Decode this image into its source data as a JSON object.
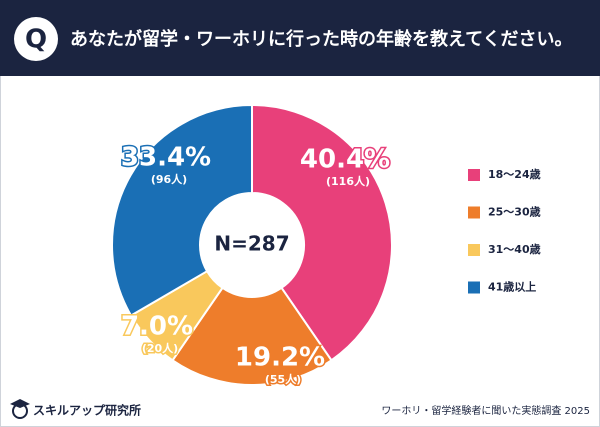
{
  "header": {
    "icon": "Q",
    "question": "あなたが留学・ワーホリに行った時の年齢を教えてください。"
  },
  "chart_data": {
    "type": "donut",
    "center_label": "N=287",
    "categories": [
      "18〜24歳",
      "25〜30歳",
      "31〜40歳",
      "41歳以上"
    ],
    "values": [
      40.4,
      19.2,
      7.0,
      33.4
    ],
    "value_labels": [
      "40.4%",
      "19.2%",
      "7.0%",
      "33.4%"
    ],
    "counts": [
      116,
      55,
      20,
      96
    ],
    "count_labels": [
      "(116人)",
      "(55人)",
      "(20人)",
      "(96人)"
    ],
    "colors": [
      "#e8407a",
      "#ee7d2b",
      "#f9c85c",
      "#1a6fb5"
    ],
    "legend": "right"
  },
  "footer": {
    "brand": "スキルアップ研究所",
    "source": "ワーホリ・留学経験者に聞いた実態調査 2025"
  }
}
